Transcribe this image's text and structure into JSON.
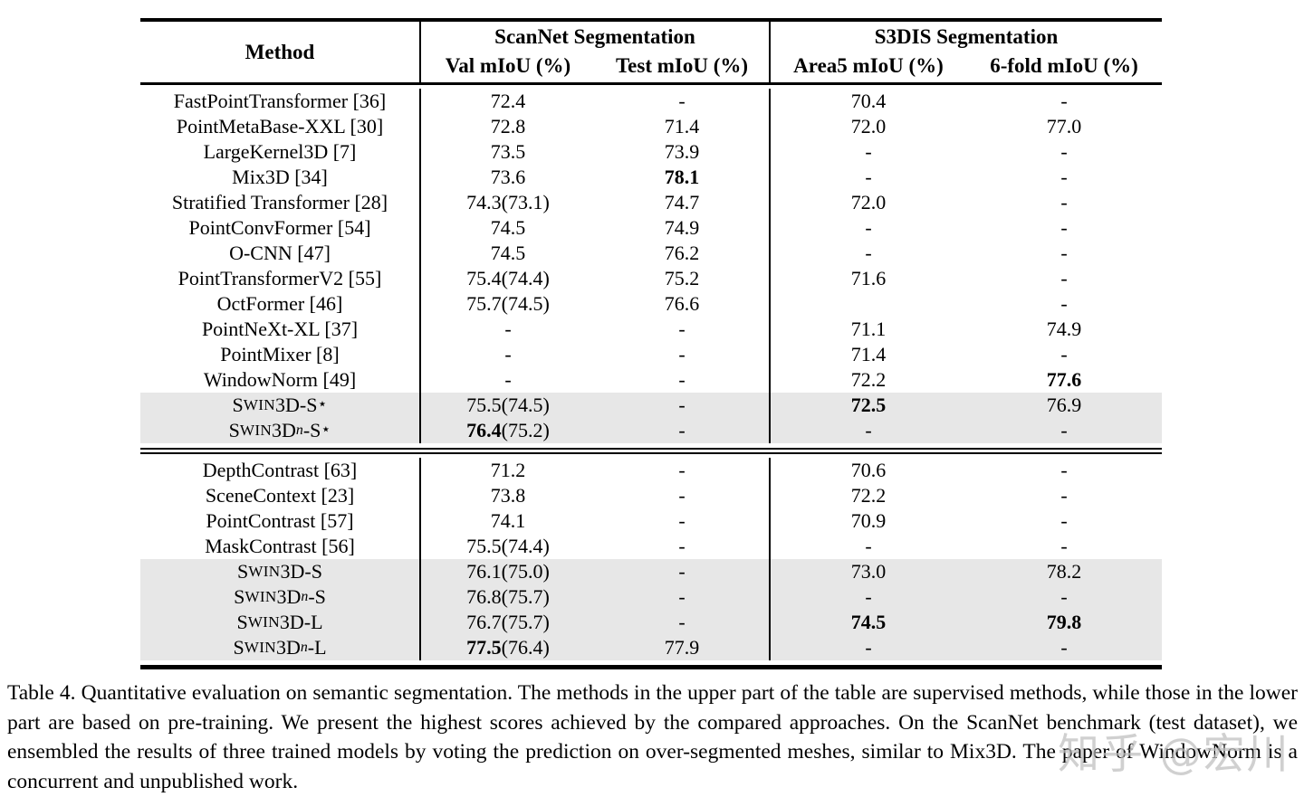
{
  "colors": {
    "row_highlight": "#e7e7e7",
    "rule": "#000000",
    "watermark": "#bebebe"
  },
  "table": {
    "title_hidden": "",
    "headers": {
      "method": "Method",
      "group1": "ScanNet Segmentation",
      "group2": "S3DIS Segmentation",
      "col1": "Val mIoU (%)",
      "col2": "Test mIoU (%)",
      "col3": "Area5 mIoU (%)",
      "col4": "6-fold mIoU (%)"
    },
    "sections": [
      {
        "name": "supervised-methods",
        "rows": [
          {
            "method": "FastPointTransformer [36]",
            "shaded": false,
            "cells": [
              [
                "",
                "72.4"
              ],
              [
                "",
                "-"
              ],
              [
                "",
                "70.4"
              ],
              [
                "",
                "-"
              ]
            ]
          },
          {
            "method": "PointMetaBase-XXL [30]",
            "shaded": false,
            "cells": [
              [
                "",
                "72.8"
              ],
              [
                "",
                "71.4"
              ],
              [
                "",
                "72.0"
              ],
              [
                "",
                "77.0"
              ]
            ]
          },
          {
            "method": "LargeKernel3D [7]",
            "shaded": false,
            "cells": [
              [
                "",
                "73.5"
              ],
              [
                "",
                "73.9"
              ],
              [
                "",
                "-"
              ],
              [
                "",
                "-"
              ]
            ]
          },
          {
            "method": "Mix3D [34]",
            "shaded": false,
            "cells": [
              [
                "",
                "73.6"
              ],
              [
                "78.1",
                ""
              ],
              [
                "",
                "-"
              ],
              [
                "",
                "-"
              ]
            ]
          },
          {
            "method": "Stratified Transformer [28]",
            "shaded": false,
            "cells": [
              [
                "",
                "74.3(73.1)"
              ],
              [
                "",
                "74.7"
              ],
              [
                "",
                "72.0"
              ],
              [
                "",
                "-"
              ]
            ]
          },
          {
            "method": "PointConvFormer [54]",
            "shaded": false,
            "cells": [
              [
                "",
                "74.5"
              ],
              [
                "",
                "74.9"
              ],
              [
                "",
                "-"
              ],
              [
                "",
                "-"
              ]
            ]
          },
          {
            "method": "O-CNN [47]",
            "shaded": false,
            "cells": [
              [
                "",
                "74.5"
              ],
              [
                "",
                "76.2"
              ],
              [
                "",
                "-"
              ],
              [
                "",
                "-"
              ]
            ]
          },
          {
            "method": "PointTransformerV2 [55]",
            "shaded": false,
            "cells": [
              [
                "",
                "75.4(74.4)"
              ],
              [
                "",
                "75.2"
              ],
              [
                "",
                "71.6"
              ],
              [
                "",
                "-"
              ]
            ]
          },
          {
            "method": "OctFormer [46]",
            "shaded": false,
            "cells": [
              [
                "",
                "75.7(74.5)"
              ],
              [
                "",
                "76.6"
              ],
              [
                "",
                ""
              ],
              [
                "",
                "-"
              ]
            ]
          },
          {
            "method": "PointNeXt-XL [37]",
            "shaded": false,
            "cells": [
              [
                "",
                "-"
              ],
              [
                "",
                "-"
              ],
              [
                "",
                "71.1"
              ],
              [
                "",
                "74.9"
              ]
            ]
          },
          {
            "method": "PointMixer [8]",
            "shaded": false,
            "cells": [
              [
                "",
                "-"
              ],
              [
                "",
                "-"
              ],
              [
                "",
                "71.4"
              ],
              [
                "",
                "-"
              ]
            ]
          },
          {
            "method": "WindowNorm [49]",
            "shaded": false,
            "cells": [
              [
                "",
                "-"
              ],
              [
                "",
                "-"
              ],
              [
                "",
                "72.2"
              ],
              [
                "77.6",
                ""
              ]
            ]
          },
          {
            "method": {
              "name": "Swin3D",
              "sub": "",
              "tail": "-S",
              "star": true
            },
            "shaded": true,
            "cells": [
              [
                "",
                "75.5(74.5)"
              ],
              [
                "",
                "-"
              ],
              [
                "72.5",
                ""
              ],
              [
                "",
                "76.9"
              ]
            ]
          },
          {
            "method": {
              "name": "Swin3D",
              "sub": "n",
              "tail": "-S",
              "star": true
            },
            "shaded": true,
            "cells": [
              [
                "76.4",
                "(75.2)"
              ],
              [
                "",
                "-"
              ],
              [
                "",
                "-"
              ],
              [
                "",
                "-"
              ]
            ]
          }
        ]
      },
      {
        "name": "pretraining-methods",
        "rows": [
          {
            "method": "DepthContrast [63]",
            "shaded": false,
            "cells": [
              [
                "",
                "71.2"
              ],
              [
                "",
                "-"
              ],
              [
                "",
                "70.6"
              ],
              [
                "",
                "-"
              ]
            ]
          },
          {
            "method": "SceneContext [23]",
            "shaded": false,
            "cells": [
              [
                "",
                "73.8"
              ],
              [
                "",
                "-"
              ],
              [
                "",
                "72.2"
              ],
              [
                "",
                "-"
              ]
            ]
          },
          {
            "method": "PointContrast [57]",
            "shaded": false,
            "cells": [
              [
                "",
                "74.1"
              ],
              [
                "",
                "-"
              ],
              [
                "",
                "70.9"
              ],
              [
                "",
                "-"
              ]
            ]
          },
          {
            "method": "MaskContrast [56]",
            "shaded": false,
            "cells": [
              [
                "",
                "75.5(74.4)"
              ],
              [
                "",
                "-"
              ],
              [
                "",
                "-"
              ],
              [
                "",
                "-"
              ]
            ]
          },
          {
            "method": {
              "name": "Swin3D",
              "sub": "",
              "tail": "-S",
              "star": false
            },
            "shaded": true,
            "cells": [
              [
                "",
                "76.1(75.0)"
              ],
              [
                "",
                "-"
              ],
              [
                "",
                "73.0"
              ],
              [
                "",
                "78.2"
              ]
            ]
          },
          {
            "method": {
              "name": "Swin3D",
              "sub": "n",
              "tail": "-S",
              "star": false
            },
            "shaded": true,
            "cells": [
              [
                "",
                "76.8(75.7)"
              ],
              [
                "",
                "-"
              ],
              [
                "",
                "-"
              ],
              [
                "",
                "-"
              ]
            ]
          },
          {
            "method": {
              "name": "Swin3D",
              "sub": "",
              "tail": "-L",
              "star": false
            },
            "shaded": true,
            "cells": [
              [
                "",
                "76.7(75.7)"
              ],
              [
                "",
                "-"
              ],
              [
                "74.5",
                ""
              ],
              [
                "79.8",
                ""
              ]
            ]
          },
          {
            "method": {
              "name": "Swin3D",
              "sub": "n",
              "tail": "-L",
              "star": false
            },
            "shaded": true,
            "cells": [
              [
                "77.5",
                "(76.4)"
              ],
              [
                "",
                "77.9"
              ],
              [
                "",
                "-"
              ],
              [
                "",
                "-"
              ]
            ]
          }
        ]
      }
    ]
  },
  "caption": "Table 4. Quantitative evaluation on semantic segmentation. The methods in the upper part of the table are supervised methods, while those in the lower part are based on pre-training. We present the highest scores achieved by the compared approaches. On the ScanNet benchmark (test dataset), we ensembled the results of three trained models by voting the prediction on over-segmented meshes, similar to Mix3D. The paper of WindowNorm is a concurrent and unpublished work.",
  "watermark": "知乎 @宏川"
}
